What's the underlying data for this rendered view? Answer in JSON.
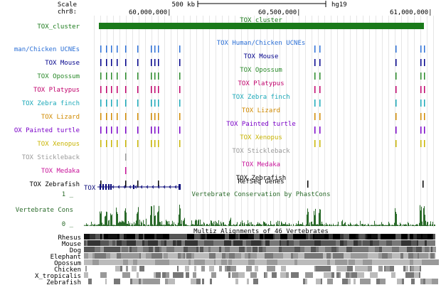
{
  "ruler": {
    "scale_label": "Scale",
    "chrom_label": "chr8:",
    "scale_bar_label": "500 kb",
    "assembly": "hg19",
    "positions": [
      "60,000,000|",
      "60,500,000|",
      "61,000,000|"
    ]
  },
  "cluster": {
    "label": "TOX_cluster",
    "center_label": "TOX_cluster",
    "color": "#1a7a1a"
  },
  "tracks": [
    {
      "label": "man/Chicken UCNEs",
      "center": "TOX Human/Chicken UCNEs",
      "color": "#2b6fd6",
      "ticks": [
        141,
        149,
        156,
        164,
        176,
        193,
        212,
        217,
        222,
        252,
        442,
        449,
        556,
        591,
        596
      ]
    },
    {
      "label": "TOX Mouse",
      "center": "TOX Mouse",
      "color": "#00008b",
      "ticks": [
        141,
        149,
        156,
        164,
        176,
        193,
        212,
        217,
        222,
        252,
        442,
        449,
        556,
        591,
        596
      ]
    },
    {
      "label": "TOX Opossum",
      "center": "TOX Opossum",
      "color": "#2a8a2a",
      "ticks": [
        141,
        149,
        156,
        164,
        176,
        193,
        212,
        217,
        222,
        252,
        442,
        449,
        556,
        591,
        596
      ]
    },
    {
      "label": "TOX Platypus",
      "center": "TOX Platypus",
      "color": "#c0006b",
      "ticks": [
        141,
        149,
        156,
        164,
        176,
        193,
        212,
        217,
        222,
        252,
        442,
        449,
        556,
        591,
        596
      ]
    },
    {
      "label": "TOX Zebra finch",
      "center": "TOX Zebra finch",
      "color": "#1aa8b8",
      "ticks": [
        141,
        149,
        156,
        164,
        176,
        193,
        212,
        217,
        222,
        252,
        442,
        449,
        556,
        591,
        596
      ]
    },
    {
      "label": "TOX Lizard",
      "center": "TOX Lizard",
      "color": "#d08a00",
      "ticks": [
        141,
        149,
        156,
        164,
        176,
        193,
        212,
        217,
        222,
        252,
        442,
        449,
        556,
        591,
        596
      ]
    },
    {
      "label": "OX Painted turtle",
      "center": "TOX Painted turtle",
      "color": "#7a00c8",
      "ticks": [
        141,
        149,
        156,
        164,
        176,
        193,
        212,
        217,
        222,
        252,
        442,
        449,
        556,
        591,
        596
      ]
    },
    {
      "label": "TOX Xenopus",
      "center": "TOX Xenopus",
      "color": "#c8b400",
      "ticks": [
        141,
        149,
        156,
        164,
        176,
        193,
        212,
        217,
        222,
        252,
        442,
        449,
        556,
        591,
        596
      ]
    },
    {
      "label": "TOX Stickleback",
      "center": "TOX Stickleback",
      "color": "#9a9a9a",
      "ticks": [
        176
      ]
    },
    {
      "label": "TOX Medaka",
      "center": "TOX Medaka",
      "color": "#c8149a",
      "ticks": [
        176
      ]
    },
    {
      "label": "TOX Zebrafish",
      "center": "TOX Zebrafish",
      "color": "#000000",
      "ticks": [
        141,
        176,
        193,
        222,
        432,
        594
      ]
    }
  ],
  "refseq": {
    "center_label": "RefSeq Genes",
    "gene_label": "TOX",
    "color": "#0a0a7a"
  },
  "conservation": {
    "title": "Vertebrate Conservation by PhastCons",
    "label": "Vertebrate Cons",
    "scale_max": "1 _",
    "scale_min": "0 _",
    "color": "#2a6a2a"
  },
  "multiz": {
    "title": "Multiz Alignments of 46 Vertebrates",
    "species": [
      "Rhesus",
      "Mouse",
      "Dog",
      "Elephant",
      "Opossum",
      "Chicken",
      "X_tropicalis",
      "Zebrafish"
    ]
  }
}
